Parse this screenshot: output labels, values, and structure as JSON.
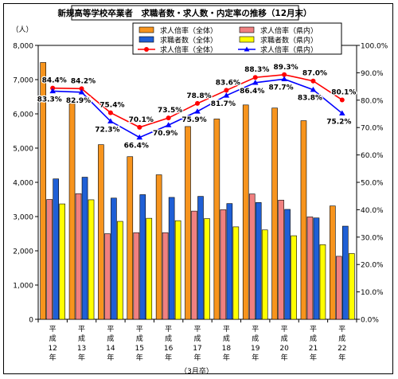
{
  "chart_data": {
    "type": "bar",
    "title": "新規高等学校卒業者　求職者数・求人数・内定率の推移（12月末）",
    "y_left_unit": "（人）",
    "x_note": "（3月卒）",
    "categories": [
      [
        "平",
        "成",
        "12",
        "年"
      ],
      [
        "平",
        "成",
        "13",
        "年"
      ],
      [
        "平",
        "成",
        "14",
        "年"
      ],
      [
        "平",
        "成",
        "15",
        "年"
      ],
      [
        "平",
        "成",
        "16",
        "年"
      ],
      [
        "平",
        "成",
        "17",
        "年"
      ],
      [
        "平",
        "成",
        "18",
        "年"
      ],
      [
        "平",
        "成",
        "19",
        "年"
      ],
      [
        "平",
        "成",
        "20",
        "年"
      ],
      [
        "平",
        "成",
        "21",
        "年"
      ],
      [
        "平",
        "成",
        "22",
        "年"
      ]
    ],
    "ylim_left": [
      0,
      8000
    ],
    "ylim_right": [
      0,
      100
    ],
    "y_left_ticks": [
      "0",
      "1,000",
      "2,000",
      "3,000",
      "4,000",
      "5,000",
      "6,000",
      "7,000",
      "8,000"
    ],
    "y_right_ticks": [
      "0.0%",
      "10.0%",
      "20.0%",
      "30.0%",
      "40.0%",
      "50.0%",
      "60.0%",
      "70.0%",
      "80.0%",
      "90.0%",
      "100.0%"
    ],
    "grid": false,
    "legend_placement": "top-center",
    "bar_series": [
      {
        "name": "求人倍率（全体）",
        "color": "#f7941d",
        "values": [
          7500,
          6300,
          5100,
          4750,
          4220,
          5630,
          5850,
          6260,
          6170,
          5800,
          3310
        ]
      },
      {
        "name": "求人倍率（県内）",
        "color": "#f08080",
        "values": [
          3500,
          3670,
          2500,
          2530,
          2530,
          3160,
          3200,
          3660,
          3480,
          2990,
          1840
        ]
      },
      {
        "name": "求職者数（全体）",
        "color": "#1f5fd6",
        "values": [
          4100,
          4150,
          3540,
          3640,
          3560,
          3590,
          3380,
          3410,
          3210,
          2960,
          2720
        ]
      },
      {
        "name": "求職者数（県内）",
        "color": "#ffff00",
        "values": [
          3370,
          3490,
          2860,
          2950,
          2880,
          2940,
          2700,
          2610,
          2440,
          2180,
          1920
        ]
      }
    ],
    "line_series": [
      {
        "name": "求人倍率（全体）",
        "color": "#ff0000",
        "marker": "circle",
        "values": [
          84.4,
          84.2,
          75.4,
          70.1,
          73.5,
          78.8,
          83.6,
          88.3,
          89.3,
          87.0,
          80.1
        ],
        "labels": [
          "84.4%",
          "84.2%",
          "75.4%",
          "70.1%",
          "73.5%",
          "78.8%",
          "83.6%",
          "88.3%",
          "89.3%",
          "87.0%",
          "80.1%"
        ]
      },
      {
        "name": "求人倍率（県内）",
        "color": "#0000ff",
        "marker": "triangle",
        "values": [
          83.3,
          82.9,
          72.3,
          66.4,
          70.9,
          75.9,
          81.7,
          86.4,
          87.7,
          83.8,
          75.2
        ],
        "labels": [
          "83.3%",
          "82.9%",
          "72.3%",
          "66.4%",
          "70.9%",
          "75.9%",
          "81.7%",
          "86.4%",
          "87.7%",
          "83.8%",
          "75.2%"
        ]
      }
    ]
  }
}
